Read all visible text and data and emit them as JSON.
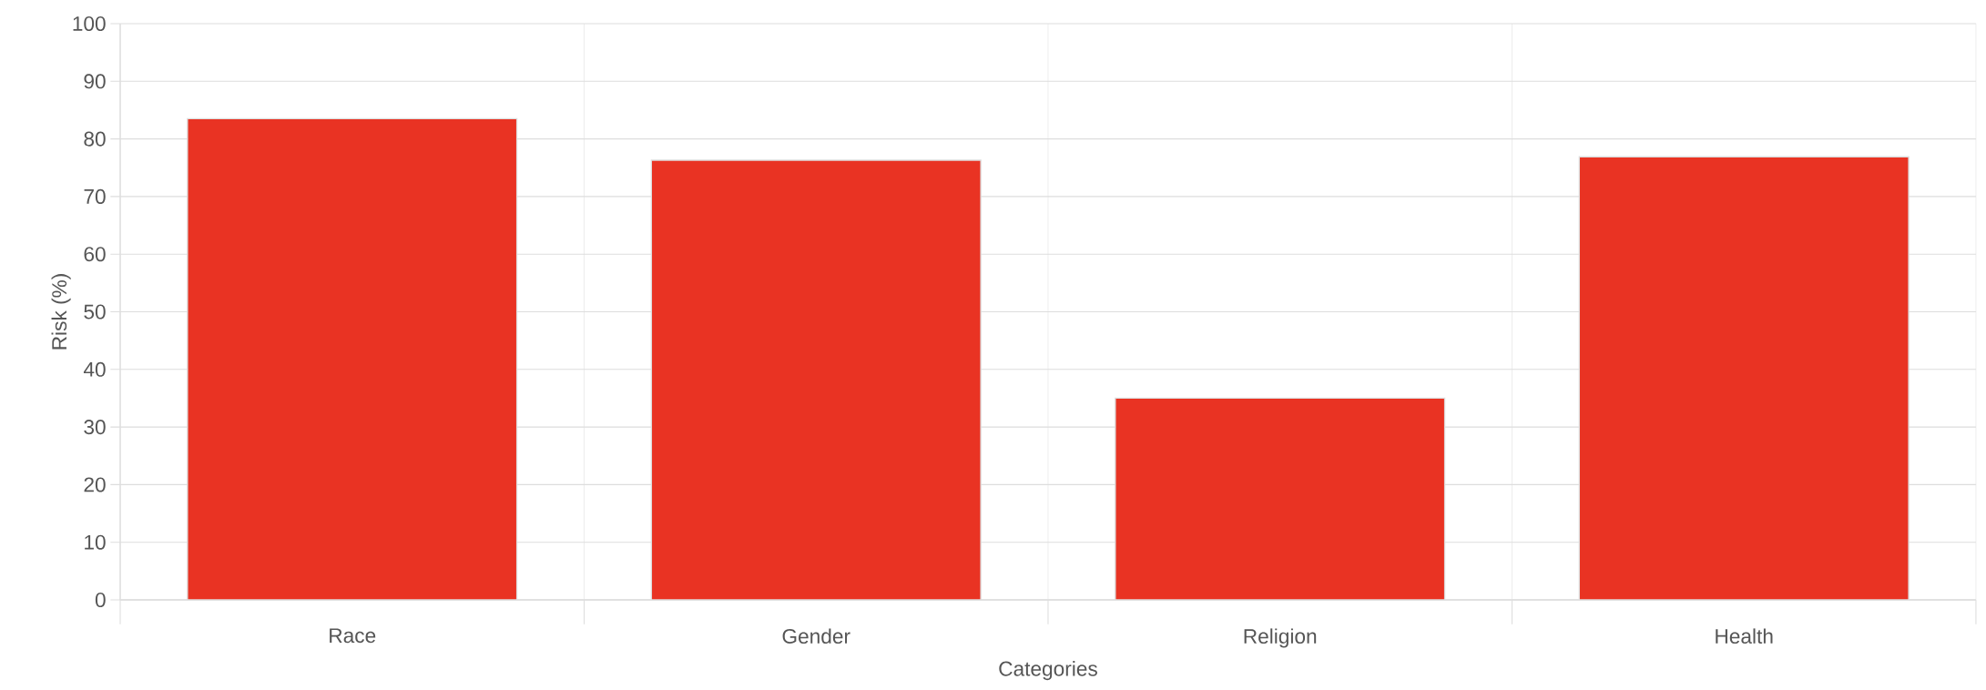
{
  "chart_data": {
    "type": "bar",
    "xlabel": "Categories",
    "ylabel": "Risk (%)",
    "categories": [
      "Race",
      "Gender",
      "Religion",
      "Health"
    ],
    "values": [
      83.5,
      76.3,
      35.0,
      76.9
    ],
    "color": "#e93323",
    "ylim": [
      0,
      100
    ],
    "yticks": [
      0,
      10,
      20,
      30,
      40,
      50,
      60,
      70,
      80,
      90,
      100
    ],
    "grid": true
  }
}
